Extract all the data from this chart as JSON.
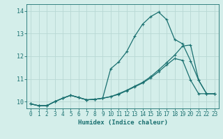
{
  "xlabel": "Humidex (Indice chaleur)",
  "bg_color": "#d4eeea",
  "grid_color": "#b8d8d4",
  "line_color": "#1a7070",
  "xlim": [
    -0.5,
    23.5
  ],
  "ylim": [
    9.7,
    14.3
  ],
  "xticks": [
    0,
    1,
    2,
    3,
    4,
    5,
    6,
    7,
    8,
    9,
    10,
    11,
    12,
    13,
    14,
    15,
    16,
    17,
    18,
    19,
    20,
    21,
    22,
    23
  ],
  "yticks": [
    10,
    11,
    12,
    13,
    14
  ],
  "series1_x": [
    0,
    1,
    2,
    3,
    4,
    5,
    6,
    7,
    8,
    9,
    10,
    11,
    12,
    13,
    14,
    15,
    16,
    17,
    18,
    19,
    20,
    21,
    22,
    23
  ],
  "series1_y": [
    9.9,
    9.82,
    9.82,
    10.0,
    10.15,
    10.28,
    10.18,
    10.08,
    10.1,
    10.15,
    11.45,
    11.75,
    12.2,
    12.88,
    13.42,
    13.75,
    13.95,
    13.62,
    12.75,
    12.55,
    11.8,
    10.95,
    10.35,
    10.35
  ],
  "series2_x": [
    0,
    1,
    2,
    3,
    4,
    5,
    6,
    7,
    8,
    9,
    10,
    11,
    12,
    13,
    14,
    15,
    16,
    17,
    18,
    19,
    20,
    21,
    22,
    23
  ],
  "series2_y": [
    9.9,
    9.82,
    9.82,
    10.0,
    10.15,
    10.28,
    10.18,
    10.08,
    10.1,
    10.15,
    10.22,
    10.35,
    10.5,
    10.68,
    10.85,
    11.1,
    11.4,
    11.72,
    12.05,
    12.45,
    12.5,
    10.95,
    10.35,
    10.35
  ],
  "series3_x": [
    0,
    1,
    2,
    3,
    4,
    5,
    6,
    7,
    8,
    9,
    10,
    11,
    12,
    13,
    14,
    15,
    16,
    17,
    18,
    19,
    20,
    21,
    22,
    23
  ],
  "series3_y": [
    9.9,
    9.82,
    9.82,
    10.0,
    10.15,
    10.28,
    10.18,
    10.08,
    10.1,
    10.15,
    10.22,
    10.32,
    10.48,
    10.65,
    10.82,
    11.05,
    11.32,
    11.62,
    11.9,
    11.82,
    10.95,
    10.35,
    10.35,
    10.35
  ]
}
